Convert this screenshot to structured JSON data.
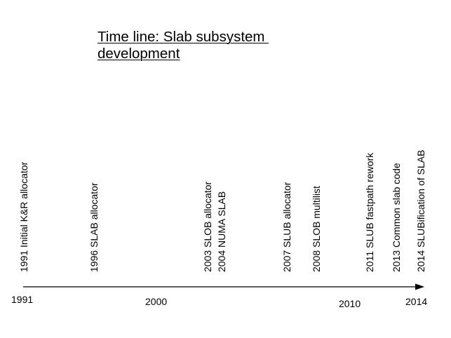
{
  "title": {
    "line1": "Time line: Slab subsystem ",
    "line2": "development"
  },
  "axis": {
    "color": "#000000",
    "year_labels": [
      "1991",
      "2000",
      "2010",
      "2014"
    ]
  },
  "events": [
    "1991 Initial K&R allocator",
    "1996 SLAB allocator",
    "2003 SLOB allocator",
    "2004 NUMA SLAB",
    "2007 SLUB allocator",
    "2008 SLOB multilist",
    "2011 SLUB fastpath rework",
    "2013 Common slab code",
    "2014 SLUBification of SLAB"
  ]
}
